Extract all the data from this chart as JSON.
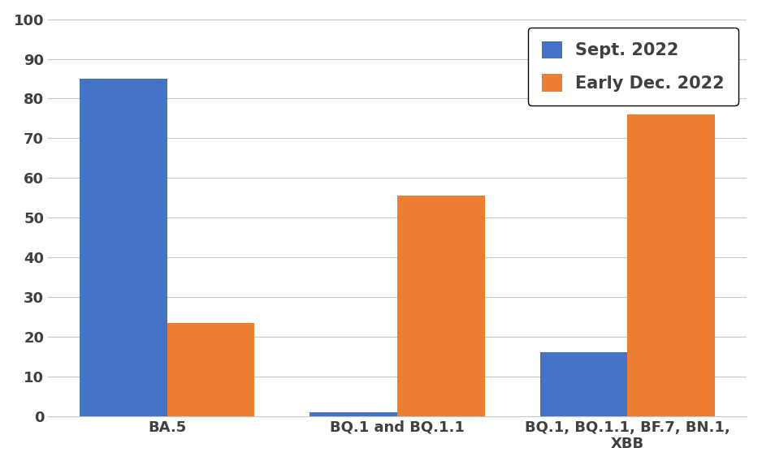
{
  "categories": [
    "BA.5",
    "BQ.1 and BQ.1.1",
    "BQ.1, BQ.1.1, BF.7, BN.1,\nXBB"
  ],
  "sept_2022": [
    85,
    1,
    16
  ],
  "dec_2022": [
    23.5,
    55.5,
    76
  ],
  "blue_color": "#4472C4",
  "orange_color": "#ED7D31",
  "legend_labels": [
    "Sept. 2022",
    "Early Dec. 2022"
  ],
  "ylim": [
    0,
    100
  ],
  "yticks": [
    0,
    10,
    20,
    30,
    40,
    50,
    60,
    70,
    80,
    90,
    100
  ],
  "bar_width": 0.38,
  "background_color": "#ffffff",
  "grid_color": "#c8c8c8",
  "legend_fontsize": 15,
  "tick_fontsize": 13,
  "xlabel_fontsize": 13,
  "tick_label_color": "#404040",
  "label_fontweight": "bold"
}
